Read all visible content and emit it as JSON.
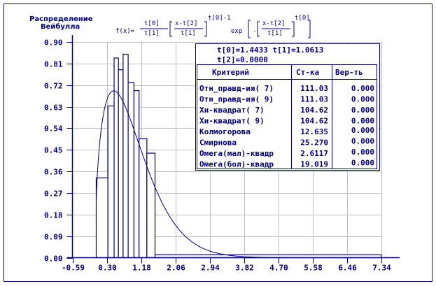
{
  "colors": {
    "ink": "#000080",
    "grid": "#c0c0c0",
    "background": "#ffffff"
  },
  "title": [
    "Распределение",
    "Вейбулла"
  ],
  "formula": {
    "lhs": "f(x)=",
    "frac1_num": "t[0]",
    "frac1_den": "t[1]",
    "bracket_num": "x-t[2]",
    "bracket_den": "t[1]",
    "power": "t[0]-1",
    "exp": "exp",
    "minus": "-",
    "inner_num": "x-t[2]",
    "inner_den": "t[1]",
    "inner_power": "t[0]"
  },
  "params": {
    "line1": "t[0]=1.4433  t[1]=1.0613",
    "line2": "t[2]=0.0000"
  },
  "table": {
    "headers": [
      "Критерий",
      "Ст-ка",
      "Вер-ть"
    ],
    "rows": [
      [
        "Отн_правд-ия( 7)",
        "111.03",
        "0.000"
      ],
      [
        "Отн_правд-ия( 9)",
        "111.03",
        "0.000"
      ],
      [
        "Хи-квадрат( 7)",
        "104.62",
        "0.000"
      ],
      [
        "Хи-квадрат( 9)",
        "104.62",
        "0.000"
      ],
      [
        "Колмогорова",
        "12.635",
        "0.000"
      ],
      [
        "Смирнова",
        "25.270",
        "0.000"
      ],
      [
        "Омега(мал)-квадр",
        "2.6117",
        "0.000"
      ],
      [
        "Омега(бол)-квадр",
        "19.019",
        "0.000"
      ]
    ]
  },
  "chart_data": {
    "type": "bar",
    "subtype": "histogram with fitted density curve",
    "xlim": [
      -0.59,
      7.34
    ],
    "ylim": [
      0,
      0.9
    ],
    "grid": true,
    "xticks": [
      "-0.59",
      "0.30",
      "1.18",
      "2.06",
      "2.94",
      "3.82",
      "4.70",
      "5.58",
      "6.46",
      "7.34"
    ],
    "yticks": [
      "0.00",
      "0.09",
      "0.18",
      "0.27",
      "0.36",
      "0.45",
      "0.54",
      "0.63",
      "0.72",
      "0.81",
      "0.90"
    ],
    "bins": [
      {
        "x0": 0.02,
        "x1": 0.32,
        "value": 0.333
      },
      {
        "x0": 0.32,
        "x1": 0.48,
        "value": 0.633
      },
      {
        "x0": 0.48,
        "x1": 0.59,
        "value": 0.833
      },
      {
        "x0": 0.59,
        "x1": 0.71,
        "value": 0.784
      },
      {
        "x0": 0.71,
        "x1": 0.84,
        "value": 0.849
      },
      {
        "x0": 0.84,
        "x1": 0.99,
        "value": 0.731
      },
      {
        "x0": 0.99,
        "x1": 1.12,
        "value": 0.697
      },
      {
        "x0": 1.12,
        "x1": 1.32,
        "value": 0.496
      },
      {
        "x0": 1.32,
        "x1": 1.53,
        "value": 0.436
      },
      {
        "x0": 1.53,
        "x1": 7.34,
        "value": 0.012
      }
    ],
    "curve": {
      "distribution": "Weibull",
      "shape": 1.4433,
      "scale": 1.0613,
      "location": 0.0
    }
  }
}
